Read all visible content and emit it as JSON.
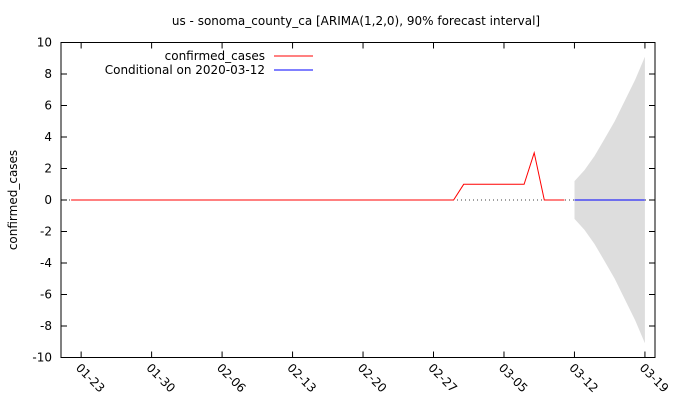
{
  "chart_data": {
    "type": "line",
    "title": "us - sonoma_county_ca [ARIMA(1,2,0), 90% forecast interval]",
    "xlabel": "",
    "ylabel": "confirmed_cases",
    "ylim": [
      -10,
      10
    ],
    "xlim": [
      "2020-01-21",
      "2020-03-20"
    ],
    "yticks": [
      -10,
      -8,
      -6,
      -4,
      -2,
      0,
      2,
      4,
      6,
      8,
      10
    ],
    "xticks": [
      {
        "date": "2020-01-23",
        "label": "01-23"
      },
      {
        "date": "2020-01-30",
        "label": "01-30"
      },
      {
        "date": "2020-02-06",
        "label": "02-06"
      },
      {
        "date": "2020-02-13",
        "label": "02-13"
      },
      {
        "date": "2020-02-20",
        "label": "02-20"
      },
      {
        "date": "2020-02-27",
        "label": "02-27"
      },
      {
        "date": "2020-03-05",
        "label": "03-05"
      },
      {
        "date": "2020-03-12",
        "label": "03-12"
      },
      {
        "date": "2020-03-19",
        "label": "03-19"
      }
    ],
    "legend_position": "top-left",
    "grid": false,
    "zero_line": "dotted",
    "series": [
      {
        "name": "confirmed_cases",
        "color": "#ff0000",
        "points": [
          [
            "2020-01-22",
            0
          ],
          [
            "2020-02-29",
            0
          ],
          [
            "2020-03-01",
            1
          ],
          [
            "2020-03-02",
            1
          ],
          [
            "2020-03-03",
            1
          ],
          [
            "2020-03-04",
            1
          ],
          [
            "2020-03-05",
            1
          ],
          [
            "2020-03-06",
            1
          ],
          [
            "2020-03-07",
            1
          ],
          [
            "2020-03-08",
            3
          ],
          [
            "2020-03-09",
            0
          ],
          [
            "2020-03-10",
            0
          ],
          [
            "2020-03-11",
            0
          ]
        ]
      },
      {
        "name": "Conditional on 2020-03-12",
        "color": "#0000ff",
        "points": [
          [
            "2020-03-12",
            0
          ],
          [
            "2020-03-19",
            0
          ]
        ]
      }
    ],
    "forecast_interval": {
      "color": "#dddddd",
      "points": [
        [
          "2020-03-12",
          -1.2,
          1.2
        ],
        [
          "2020-03-13",
          -1.9,
          1.9
        ],
        [
          "2020-03-14",
          -2.8,
          2.8
        ],
        [
          "2020-03-15",
          -3.9,
          3.9
        ],
        [
          "2020-03-16",
          -5.0,
          5.0
        ],
        [
          "2020-03-17",
          -6.3,
          6.3
        ],
        [
          "2020-03-18",
          -7.6,
          7.6
        ],
        [
          "2020-03-19",
          -9.1,
          9.1
        ]
      ]
    }
  }
}
